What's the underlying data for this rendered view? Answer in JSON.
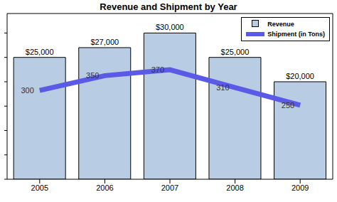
{
  "chart_data": {
    "type": "bar",
    "title": "Revenue and Shipment by Year",
    "categories": [
      "2005",
      "2006",
      "2007",
      "2008",
      "2009"
    ],
    "series": [
      {
        "name": "Revenue",
        "type": "bar",
        "color": "#b8cce4",
        "values": [
          25000,
          27000,
          30000,
          25000,
          20000
        ],
        "value_labels": [
          "$25,000",
          "$27,000",
          "$30,000",
          "$25,000",
          "$20,000"
        ]
      },
      {
        "name": "Shipment (in Tons)",
        "type": "line",
        "axis": "y2",
        "color": "#5a5ae6",
        "values": [
          300,
          350,
          370,
          310,
          250
        ]
      }
    ],
    "ylim": [
      0,
      34000
    ],
    "yticks": [
      0,
      5000,
      10000,
      15000,
      20000,
      25000,
      30000
    ],
    "y2lim": [
      0,
      560
    ],
    "grid": false,
    "legend": "top-right",
    "data_labels": true,
    "tick_labels": "x"
  }
}
